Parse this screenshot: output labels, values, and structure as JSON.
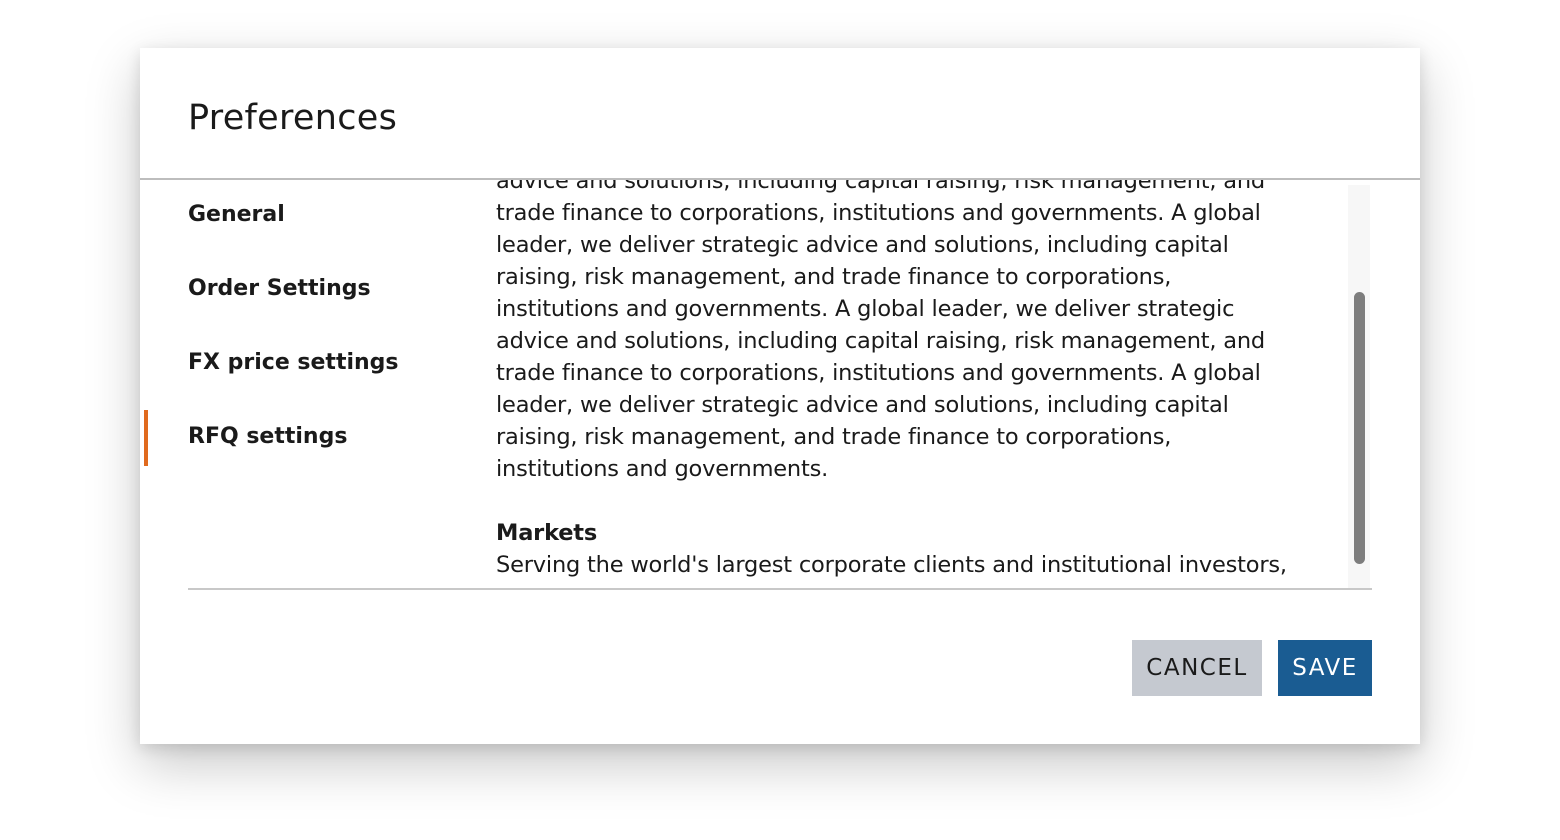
{
  "dialog": {
    "title": "Preferences"
  },
  "nav": {
    "items": [
      {
        "label": "General"
      },
      {
        "label": "Order Settings"
      },
      {
        "label": "FX price settings"
      },
      {
        "label": "RFQ settings",
        "active": true
      }
    ]
  },
  "content": {
    "lines": [
      "advice and solutions, including capital raising, risk management, and",
      "trade finance to corporations, institutions and governments. A global",
      "leader, we deliver strategic advice and solutions, including capital",
      "raising, risk management, and trade finance to corporations,",
      "institutions and governments. A global leader, we deliver strategic",
      "advice and solutions, including capital raising, risk management, and",
      "trade finance to corporations, institutions and governments. A global",
      "leader, we deliver strategic advice and solutions, including capital",
      "raising, risk management, and trade finance to corporations,",
      "institutions and governments."
    ],
    "section_heading": "Markets",
    "section_line": "Serving the world's largest corporate clients and institutional investors,"
  },
  "footer": {
    "cancel_label": "CANCEL",
    "save_label": "SAVE"
  },
  "colors": {
    "accent": "#e06a1e",
    "primary": "#1a5c92",
    "secondary": "#c5c9d0"
  }
}
